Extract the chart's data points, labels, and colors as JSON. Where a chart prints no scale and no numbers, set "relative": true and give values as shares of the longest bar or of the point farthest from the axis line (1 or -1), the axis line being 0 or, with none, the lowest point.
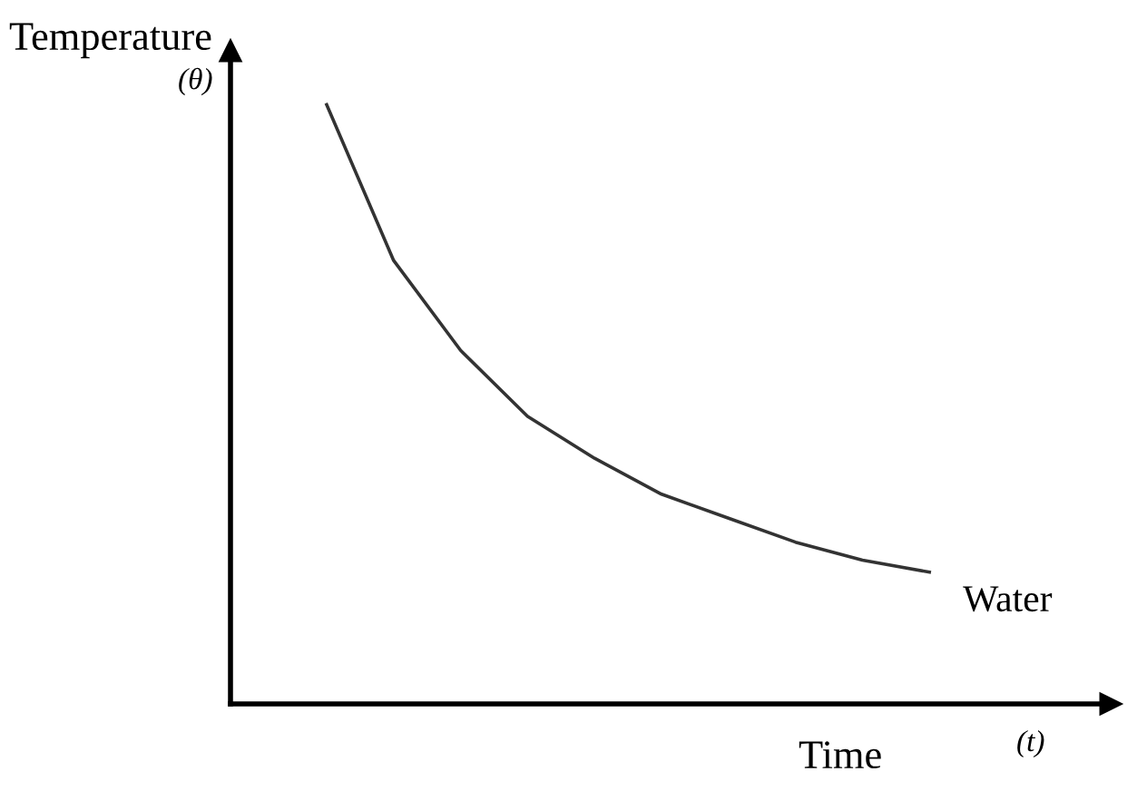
{
  "chart_data": {
    "type": "line",
    "relative": true,
    "ylabel": "Temperature",
    "xlabel": "Time",
    "annotations": [
      "(θ)",
      "(t)"
    ],
    "categories": [
      null,
      null,
      null,
      null,
      null,
      null,
      null,
      null,
      null,
      null
    ],
    "series": [
      {
        "name": "Water",
        "color": "#333333",
        "values": [
          1,
          0.74,
          0.59,
          0.48,
          0.41,
          0.35,
          0.31,
          0.27,
          0.24,
          0.22
        ]
      }
    ],
    "marker": "none",
    "line_style": "solid"
  }
}
